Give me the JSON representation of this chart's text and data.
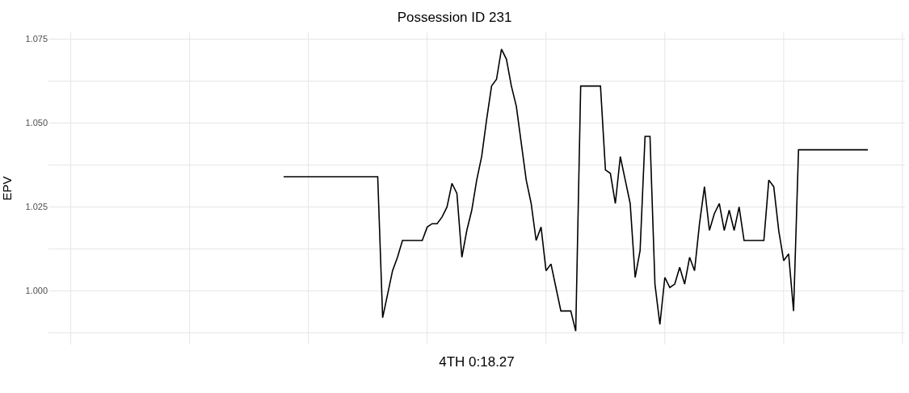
{
  "chart_data": {
    "type": "line",
    "title": "Possession ID 231",
    "xlabel": "4TH 0:18.27",
    "ylabel": "EPV",
    "grid": true,
    "marker": "none",
    "line_style": "solid",
    "categories": [
      null,
      null,
      null,
      null,
      null,
      null,
      null,
      null,
      null,
      null,
      null,
      null,
      null,
      null,
      null,
      null,
      null,
      null,
      null,
      null,
      null,
      null,
      null,
      null,
      null,
      null,
      null,
      null,
      null,
      null,
      null,
      null,
      null,
      null,
      null,
      null,
      null,
      null,
      null,
      null,
      null,
      null,
      null,
      null,
      null,
      null,
      null,
      null,
      null,
      null,
      null,
      null,
      null,
      null,
      null,
      null,
      null,
      null,
      null,
      null,
      null,
      null,
      null,
      null,
      null,
      null,
      null,
      null,
      null,
      null,
      null,
      null,
      null,
      null,
      null,
      null,
      null,
      null,
      null,
      null,
      null,
      null,
      null,
      null,
      null,
      null,
      null,
      null,
      null,
      null,
      null,
      null,
      null,
      null,
      null,
      null,
      null,
      null,
      null,
      null,
      null,
      null,
      null,
      null,
      null,
      null,
      null,
      null,
      null,
      null,
      null,
      null,
      null,
      null,
      null,
      null,
      null,
      null,
      null,
      null,
      null,
      null,
      null,
      null,
      null,
      null,
      null,
      null,
      null,
      null,
      null,
      null,
      null,
      null,
      null,
      null,
      null,
      null,
      null,
      null,
      null,
      null,
      null,
      null,
      null,
      null,
      null,
      null,
      null,
      null,
      null,
      null,
      null,
      null,
      null,
      null,
      null,
      null,
      null,
      null,
      null,
      null,
      null,
      null,
      null,
      null,
      null,
      null,
      null,
      null,
      null,
      null,
      null
    ],
    "ylim": [
      0.984,
      1.077
    ],
    "yticks": [
      {
        "value": 0.9875,
        "label": null
      },
      {
        "value": 1.0,
        "label": "1.000"
      },
      {
        "value": 1.0125,
        "label": null
      },
      {
        "value": 1.025,
        "label": "1.025"
      },
      {
        "value": 1.0375,
        "label": null
      },
      {
        "value": 1.05,
        "label": "1.050"
      },
      {
        "value": 1.0625,
        "label": null
      },
      {
        "value": 1.075,
        "label": "1.075"
      }
    ],
    "series": [
      {
        "color": "#000000",
        "values": [
          null,
          null,
          null,
          null,
          null,
          null,
          null,
          null,
          null,
          null,
          null,
          null,
          null,
          null,
          null,
          null,
          null,
          null,
          null,
          null,
          null,
          null,
          null,
          null,
          null,
          null,
          null,
          null,
          null,
          null,
          null,
          null,
          null,
          null,
          null,
          null,
          null,
          null,
          null,
          null,
          null,
          null,
          null,
          null,
          null,
          null,
          null,
          1.034,
          1.034,
          1.034,
          1.034,
          1.034,
          1.034,
          1.034,
          1.034,
          1.034,
          1.034,
          1.034,
          1.034,
          1.034,
          1.034,
          1.034,
          1.034,
          1.034,
          1.034,
          1.034,
          1.034,
          0.992,
          0.999,
          1.006,
          1.01,
          1.015,
          1.015,
          1.015,
          1.015,
          1.015,
          1.019,
          1.02,
          1.02,
          1.022,
          1.025,
          1.032,
          1.029,
          1.01,
          1.018,
          1.024,
          1.033,
          1.04,
          1.051,
          1.061,
          1.063,
          1.072,
          1.069,
          1.061,
          1.055,
          1.044,
          1.033,
          1.026,
          1.015,
          1.019,
          1.006,
          1.008,
          1.001,
          0.994,
          0.994,
          0.994,
          0.988,
          1.061,
          1.061,
          1.061,
          1.061,
          1.061,
          1.036,
          1.035,
          1.026,
          1.04,
          1.033,
          1.026,
          1.004,
          1.012,
          1.046,
          1.046,
          1.002,
          0.99,
          1.004,
          1.001,
          1.002,
          1.007,
          1.002,
          1.01,
          1.006,
          1.02,
          1.031,
          1.018,
          1.023,
          1.026,
          1.018,
          1.024,
          1.018,
          1.025,
          1.015,
          1.015,
          1.015,
          1.015,
          1.015,
          1.033,
          1.031,
          1.018,
          1.009,
          1.011,
          0.994,
          1.042,
          1.042,
          1.042,
          1.042,
          1.042,
          1.042,
          1.042,
          1.042,
          1.042,
          1.042,
          1.042,
          1.042,
          1.042,
          1.042,
          1.042,
          null,
          null,
          null,
          null,
          null,
          null,
          null
        ]
      }
    ]
  }
}
